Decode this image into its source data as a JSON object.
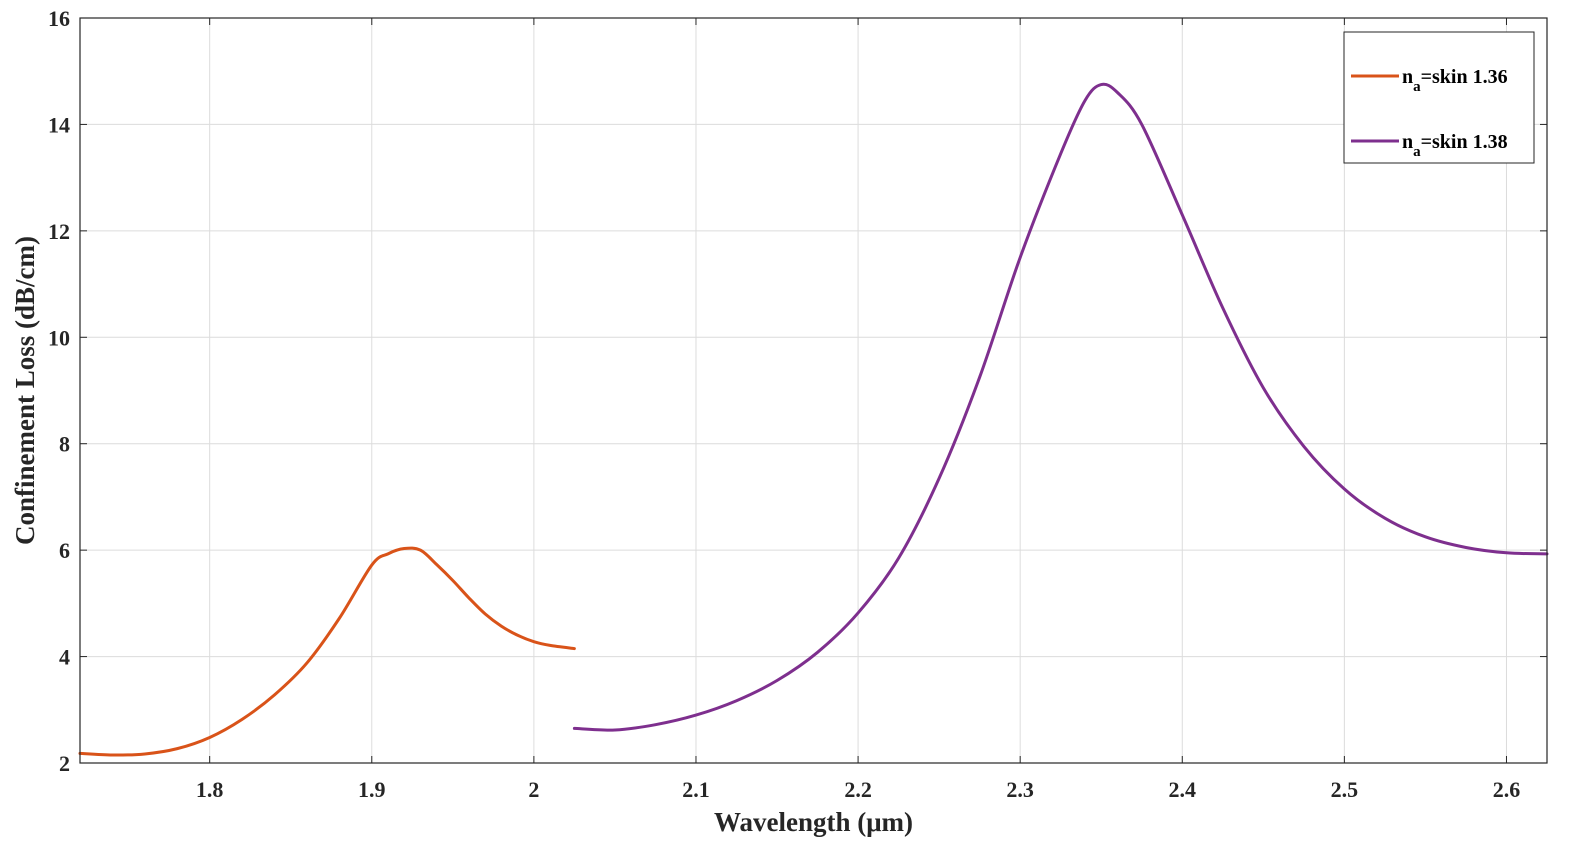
{
  "chart_data": {
    "type": "line",
    "title": "",
    "xlabel": "Wavelength (μm)",
    "ylabel": "Confinement Loss (dB/cm)",
    "xlim": [
      1.72,
      2.625
    ],
    "ylim": [
      2,
      16
    ],
    "xticks": [
      1.8,
      1.9,
      2,
      2.1,
      2.2,
      2.3,
      2.4,
      2.5,
      2.6
    ],
    "xtick_labels": [
      "1.8",
      "1.9",
      "2",
      "2.1",
      "2.2",
      "2.3",
      "2.4",
      "2.5",
      "2.6"
    ],
    "yticks": [
      2,
      4,
      6,
      8,
      10,
      12,
      14,
      16
    ],
    "ytick_labels": [
      "2",
      "4",
      "6",
      "8",
      "10",
      "12",
      "14",
      "16"
    ],
    "grid": true,
    "legend_position": "top-right",
    "series": [
      {
        "name": "n",
        "name_subscript": "a",
        "name_suffix": "=skin 1.36",
        "color": "#D95319",
        "x": [
          1.72,
          1.74,
          1.76,
          1.78,
          1.8,
          1.82,
          1.84,
          1.86,
          1.88,
          1.9,
          1.91,
          1.92,
          1.93,
          1.94,
          1.95,
          1.96,
          1.97,
          1.98,
          1.99,
          2.0,
          2.01,
          2.025
        ],
        "y": [
          2.18,
          2.15,
          2.17,
          2.27,
          2.48,
          2.82,
          3.28,
          3.88,
          4.72,
          5.72,
          5.93,
          6.03,
          6.0,
          5.73,
          5.43,
          5.1,
          4.8,
          4.57,
          4.4,
          4.28,
          4.21,
          4.15
        ]
      },
      {
        "name": "n",
        "name_subscript": "a",
        "name_suffix": "=skin 1.38",
        "color": "#7E2F8E",
        "x": [
          2.025,
          2.05,
          2.075,
          2.1,
          2.125,
          2.15,
          2.175,
          2.2,
          2.225,
          2.25,
          2.275,
          2.3,
          2.325,
          2.34,
          2.35,
          2.36,
          2.375,
          2.4,
          2.425,
          2.45,
          2.475,
          2.5,
          2.525,
          2.55,
          2.575,
          2.6,
          2.625
        ],
        "y": [
          2.65,
          2.62,
          2.72,
          2.9,
          3.17,
          3.55,
          4.08,
          4.82,
          5.85,
          7.35,
          9.25,
          11.5,
          13.45,
          14.45,
          14.75,
          14.6,
          14.0,
          12.3,
          10.55,
          9.05,
          7.95,
          7.15,
          6.6,
          6.25,
          6.05,
          5.95,
          5.93
        ]
      }
    ]
  }
}
